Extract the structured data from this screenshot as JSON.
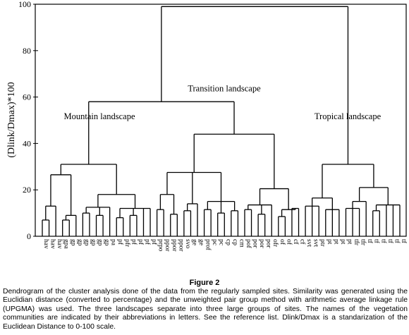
{
  "chart_data": {
    "type": "dendrogram",
    "ylabel": "(Dlink/Dmax)*100",
    "ylim": [
      0,
      100
    ],
    "yticks": [
      0,
      20,
      40,
      60,
      80,
      100
    ],
    "leaves": [
      "hav",
      "hav",
      "hav",
      "gpa",
      "gp",
      "gp",
      "gp",
      "gp",
      "gp",
      "gp",
      "pa",
      "pf",
      "pfr",
      "pf",
      "pf",
      "pf",
      "pf",
      "prpo",
      "ppor",
      "ppor",
      "ppor",
      "svo",
      "ge",
      "ge",
      "prof",
      "pc",
      "pc",
      "cp",
      "cp",
      "cm",
      "pof",
      "por",
      "por",
      "por",
      "ofr",
      "of",
      "of",
      "cf",
      "cf",
      "svt",
      "svt",
      "ptr",
      "pt",
      "pt",
      "pt",
      "pt",
      "tfr",
      "tfr",
      "tf",
      "tf",
      "tf",
      "tf",
      "tf",
      "tf"
    ],
    "annotations": [
      "Mountain landscape",
      "Transition landscape",
      "Tropical landscape"
    ]
  },
  "figure": {
    "title": "Figure 2",
    "caption": "Dendrogram of the cluster analysis done of the data from the regularly sampled sites. Similarity was generated using the Euclidian distance (converted to percentage) and the unweighted pair group method with arithmetic average linkage rule (UPGMA) was used. The three landscapes separate into three large groups of sites. The names of the vegetation communities are indicated by their abbreviations in letters. See the reference list. Dlink/Dmax is a standarization of the Euclidean Distance to 0-100 scale."
  }
}
